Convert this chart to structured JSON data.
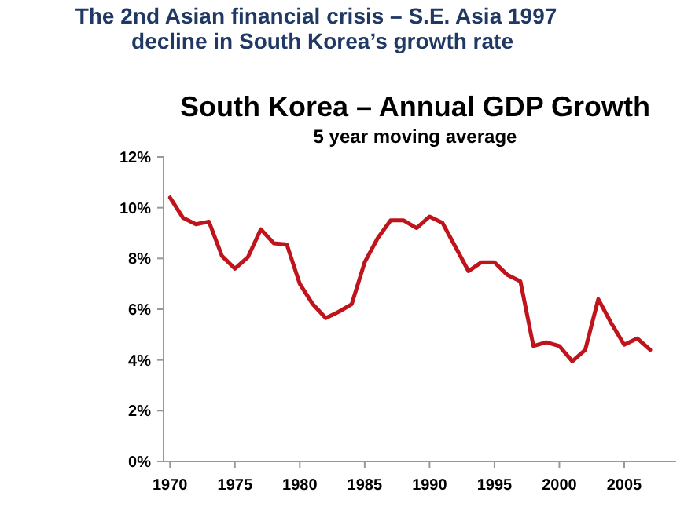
{
  "chart_data": {
    "type": "line",
    "title": "South Korea – Annual GDP Growth",
    "subtitle": "5 year moving average",
    "annotations": [
      "The 2nd Asian financial crisis – S.E. Asia 1997",
      "decline in South Korea’s growth rate"
    ],
    "x": [
      1970,
      1971,
      1972,
      1973,
      1974,
      1975,
      1976,
      1977,
      1978,
      1979,
      1980,
      1981,
      1982,
      1983,
      1984,
      1985,
      1986,
      1987,
      1988,
      1989,
      1990,
      1991,
      1992,
      1993,
      1994,
      1995,
      1996,
      1997,
      1998,
      1999,
      2000,
      2001,
      2002,
      2003,
      2004,
      2005,
      2006,
      2007
    ],
    "series": [
      {
        "color": "#c0141c",
        "values": [
          10.4,
          9.6,
          9.35,
          9.45,
          8.1,
          7.6,
          8.05,
          9.15,
          8.6,
          8.55,
          7.0,
          6.2,
          5.65,
          5.9,
          6.2,
          7.85,
          8.8,
          9.5,
          9.5,
          9.2,
          9.65,
          9.4,
          8.45,
          7.5,
          7.85,
          7.85,
          7.35,
          7.1,
          4.55,
          4.7,
          4.55,
          3.95,
          4.4,
          6.4,
          5.45,
          4.6,
          4.85,
          4.4
        ]
      }
    ],
    "xlim": [
      1969.5,
      2009
    ],
    "xticks": [
      1970,
      1975,
      1980,
      1985,
      1990,
      1995,
      2000,
      2005
    ],
    "ylim": [
      0,
      12
    ],
    "yticks": [
      {
        "value": 0,
        "label": "0%"
      },
      {
        "value": 2,
        "label": "2%"
      },
      {
        "value": 4,
        "label": "4%"
      },
      {
        "value": 6,
        "label": "6%"
      },
      {
        "value": 8,
        "label": "8%"
      },
      {
        "value": 10,
        "label": "10%"
      },
      {
        "value": 12,
        "label": "12%"
      }
    ],
    "grid": false,
    "marker": "none",
    "line_style": "solid"
  }
}
